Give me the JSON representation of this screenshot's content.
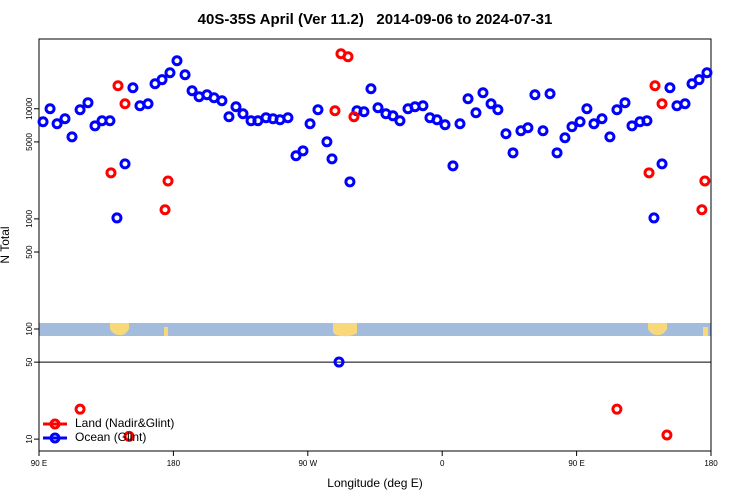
{
  "chart_data": {
    "type": "scatter",
    "title": "40S-35S April (Ver 11.2)   2014-09-06 to 2024-07-31",
    "x_label": "Longitude (deg E)",
    "y_label": "N Total",
    "xlim": [
      90,
      540
    ],
    "xticks": [
      {
        "value": 90,
        "label": "90 E"
      },
      180,
      {
        "value": 270,
        "label": "90 W"
      },
      {
        "value": 360,
        "label": "0"
      },
      {
        "value": 450,
        "label": "90 E"
      },
      {
        "value": 540,
        "label": "180"
      }
    ],
    "ylim": [
      7.8,
      43000
    ],
    "log_y": true,
    "yticks": [
      10,
      50,
      100,
      500,
      1000,
      5000,
      10000
    ],
    "hline": 50,
    "legend": "bottom-left",
    "series": [
      {
        "name": "Land (Nadir&Glint)",
        "color": "#ff0000",
        "x": [
          117.5,
          138.2,
          142.9,
          147.6,
          150.3,
          174.4,
          176.4,
          288.2,
          292.2,
          296.9,
          300.9,
          477.0,
          498.5,
          502.5,
          507.2,
          510.5,
          533.9,
          535.9
        ],
        "values": [
          18.7,
          2620,
          16180,
          11100,
          10.6,
          1210,
          2210,
          9590,
          31620,
          29700,
          8460,
          18.7,
          2620,
          16180,
          11100,
          10.9,
          1210,
          2210
        ]
      },
      {
        "name": "Ocean (Glint)",
        "color": "#0000ff",
        "x": [
          92.7,
          97.4,
          102.1,
          107.4,
          112.1,
          117.5,
          122.8,
          127.5,
          132.2,
          137.5,
          142.2,
          147.6,
          152.9,
          157.6,
          163.0,
          167.7,
          172.4,
          177.7,
          182.4,
          187.8,
          192.5,
          197.2,
          202.5,
          207.2,
          212.5,
          217.2,
          221.9,
          226.6,
          232.0,
          236.6,
          242.0,
          246.7,
          251.4,
          256.7,
          262.1,
          266.8,
          271.5,
          276.8,
          282.8,
          286.2,
          290.9,
          298.2,
          302.9,
          307.6,
          312.3,
          317.0,
          322.3,
          327.0,
          331.7,
          337.1,
          341.8,
          347.1,
          351.8,
          356.5,
          361.9,
          367.2,
          371.9,
          377.3,
          382.6,
          387.3,
          392.7,
          397.3,
          402.7,
          407.4,
          412.7,
          417.4,
          422.1,
          427.5,
          432.2,
          436.9,
          442.2,
          446.9,
          452.3,
          456.9,
          461.6,
          467.0,
          472.3,
          477.0,
          482.4,
          487.1,
          492.4,
          497.1,
          501.8,
          507.2,
          512.5,
          517.2,
          522.6,
          527.3,
          532.0,
          537.3
        ],
        "values": [
          7620,
          10000,
          7310,
          8110,
          5560,
          9790,
          11350,
          7000,
          7780,
          7780,
          1020,
          3160,
          15520,
          10640,
          11100,
          16870,
          18370,
          21240,
          27290,
          20380,
          14580,
          12850,
          13400,
          12590,
          11830,
          8460,
          10420,
          9010,
          7780,
          7780,
          8280,
          8110,
          7940,
          8280,
          3740,
          4150,
          7310,
          9790,
          5010,
          3510,
          50.1,
          2170,
          9590,
          9400,
          15200,
          10210,
          9010,
          8630,
          7780,
          10000,
          10420,
          10640,
          8280,
          7940,
          7160,
          3030,
          7310,
          12330,
          9200,
          13970,
          11100,
          9790,
          5930,
          3980,
          6310,
          6720,
          13400,
          6310,
          13680,
          3980,
          5450,
          6860,
          7620,
          10000,
          7310,
          8110,
          5560,
          9790,
          11350,
          7000,
          7620,
          7780,
          1020,
          3160,
          15520,
          10640,
          11100,
          16870,
          18370,
          21240
        ]
      }
    ]
  }
}
